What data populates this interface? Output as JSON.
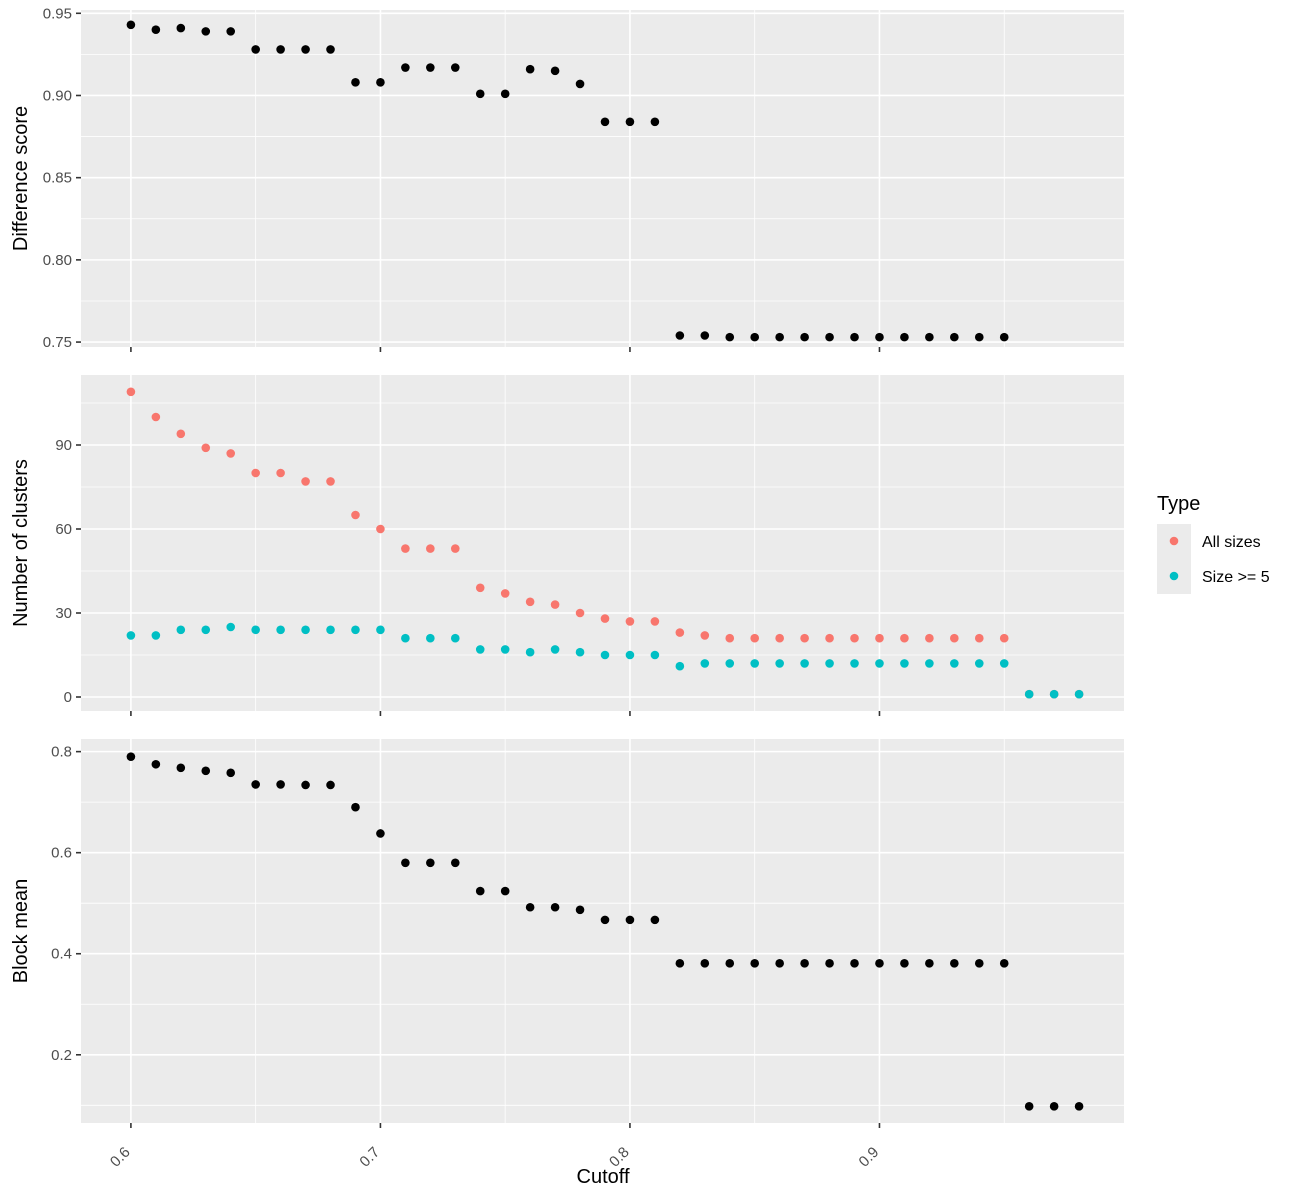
{
  "chart_data": {
    "type": "scatter",
    "x_axis": {
      "label": "Cutoff",
      "range": [
        0.58,
        0.998
      ],
      "ticks": [
        0.6,
        0.7,
        0.8,
        0.9
      ],
      "tick_labels": [
        "0.6",
        "0.7",
        "0.8",
        "0.9"
      ]
    },
    "legend": {
      "title": "Type",
      "position": "right",
      "entries": [
        {
          "name": "All sizes",
          "color": "#F8766D"
        },
        {
          "name": "Size >= 5",
          "color": "#00BFC4"
        }
      ]
    },
    "panels": [
      {
        "ylabel": "Difference score",
        "ylim": [
          0.747,
          0.952
        ],
        "yticks": [
          0.75,
          0.8,
          0.85,
          0.9,
          0.95
        ],
        "ytick_labels": [
          "0.75",
          "0.80",
          "0.85",
          "0.90",
          "0.95"
        ],
        "series": [
          {
            "color": "#000000",
            "x": [
              0.6,
              0.61,
              0.62,
              0.63,
              0.64,
              0.65,
              0.66,
              0.67,
              0.68,
              0.69,
              0.7,
              0.71,
              0.72,
              0.73,
              0.74,
              0.75,
              0.76,
              0.77,
              0.78,
              0.79,
              0.8,
              0.81,
              0.82,
              0.83,
              0.84,
              0.85,
              0.86,
              0.87,
              0.88,
              0.89,
              0.9,
              0.91,
              0.92,
              0.93,
              0.94,
              0.95
            ],
            "y": [
              0.943,
              0.94,
              0.941,
              0.939,
              0.939,
              0.928,
              0.928,
              0.928,
              0.928,
              0.908,
              0.908,
              0.917,
              0.917,
              0.917,
              0.901,
              0.901,
              0.916,
              0.915,
              0.907,
              0.884,
              0.884,
              0.884,
              0.754,
              0.754,
              0.753,
              0.753,
              0.753,
              0.753,
              0.753,
              0.753,
              0.753,
              0.753,
              0.753,
              0.753,
              0.753,
              0.753
            ]
          }
        ]
      },
      {
        "ylabel": "Number of clusters",
        "ylim": [
          -5,
          115
        ],
        "yticks": [
          0,
          30,
          60,
          90
        ],
        "ytick_labels": [
          "0",
          "30",
          "60",
          "90"
        ],
        "series": [
          {
            "name": "All sizes",
            "color": "#F8766D",
            "x": [
              0.6,
              0.61,
              0.62,
              0.63,
              0.64,
              0.65,
              0.66,
              0.67,
              0.68,
              0.69,
              0.7,
              0.71,
              0.72,
              0.73,
              0.74,
              0.75,
              0.76,
              0.77,
              0.78,
              0.79,
              0.8,
              0.81,
              0.82,
              0.83,
              0.84,
              0.85,
              0.86,
              0.87,
              0.88,
              0.89,
              0.9,
              0.91,
              0.92,
              0.93,
              0.94,
              0.95,
              0.96,
              0.97,
              0.98
            ],
            "y": [
              109,
              100,
              94,
              89,
              87,
              80,
              80,
              77,
              77,
              65,
              60,
              53,
              53,
              53,
              39,
              37,
              34,
              33,
              30,
              28,
              27,
              27,
              23,
              22,
              21,
              21,
              21,
              21,
              21,
              21,
              21,
              21,
              21,
              21,
              21,
              21,
              1,
              1,
              1
            ]
          },
          {
            "name": "Size >= 5",
            "color": "#00BFC4",
            "x": [
              0.6,
              0.61,
              0.62,
              0.63,
              0.64,
              0.65,
              0.66,
              0.67,
              0.68,
              0.69,
              0.7,
              0.71,
              0.72,
              0.73,
              0.74,
              0.75,
              0.76,
              0.77,
              0.78,
              0.79,
              0.8,
              0.81,
              0.82,
              0.83,
              0.84,
              0.85,
              0.86,
              0.87,
              0.88,
              0.89,
              0.9,
              0.91,
              0.92,
              0.93,
              0.94,
              0.95,
              0.96,
              0.97,
              0.98
            ],
            "y": [
              22,
              22,
              24,
              24,
              25,
              24,
              24,
              24,
              24,
              24,
              24,
              21,
              21,
              21,
              17,
              17,
              16,
              17,
              16,
              15,
              15,
              15,
              11,
              12,
              12,
              12,
              12,
              12,
              12,
              12,
              12,
              12,
              12,
              12,
              12,
              12,
              1,
              1,
              1
            ]
          }
        ]
      },
      {
        "ylabel": "Block mean",
        "ylim": [
          0.065,
          0.825
        ],
        "yticks": [
          0.2,
          0.4,
          0.6,
          0.8
        ],
        "ytick_labels": [
          "0.2",
          "0.4",
          "0.6",
          "0.8"
        ],
        "series": [
          {
            "color": "#000000",
            "x": [
              0.6,
              0.61,
              0.62,
              0.63,
              0.64,
              0.65,
              0.66,
              0.67,
              0.68,
              0.69,
              0.7,
              0.71,
              0.72,
              0.73,
              0.74,
              0.75,
              0.76,
              0.77,
              0.78,
              0.79,
              0.8,
              0.81,
              0.82,
              0.83,
              0.84,
              0.85,
              0.86,
              0.87,
              0.88,
              0.89,
              0.9,
              0.91,
              0.92,
              0.93,
              0.94,
              0.95,
              0.96,
              0.97,
              0.98
            ],
            "y": [
              0.79,
              0.775,
              0.768,
              0.762,
              0.758,
              0.735,
              0.735,
              0.734,
              0.734,
              0.69,
              0.638,
              0.58,
              0.58,
              0.58,
              0.524,
              0.524,
              0.492,
              0.492,
              0.487,
              0.467,
              0.467,
              0.467,
              0.381,
              0.381,
              0.381,
              0.381,
              0.381,
              0.381,
              0.381,
              0.381,
              0.381,
              0.381,
              0.381,
              0.381,
              0.381,
              0.381,
              0.098,
              0.098,
              0.098
            ]
          }
        ]
      }
    ]
  }
}
